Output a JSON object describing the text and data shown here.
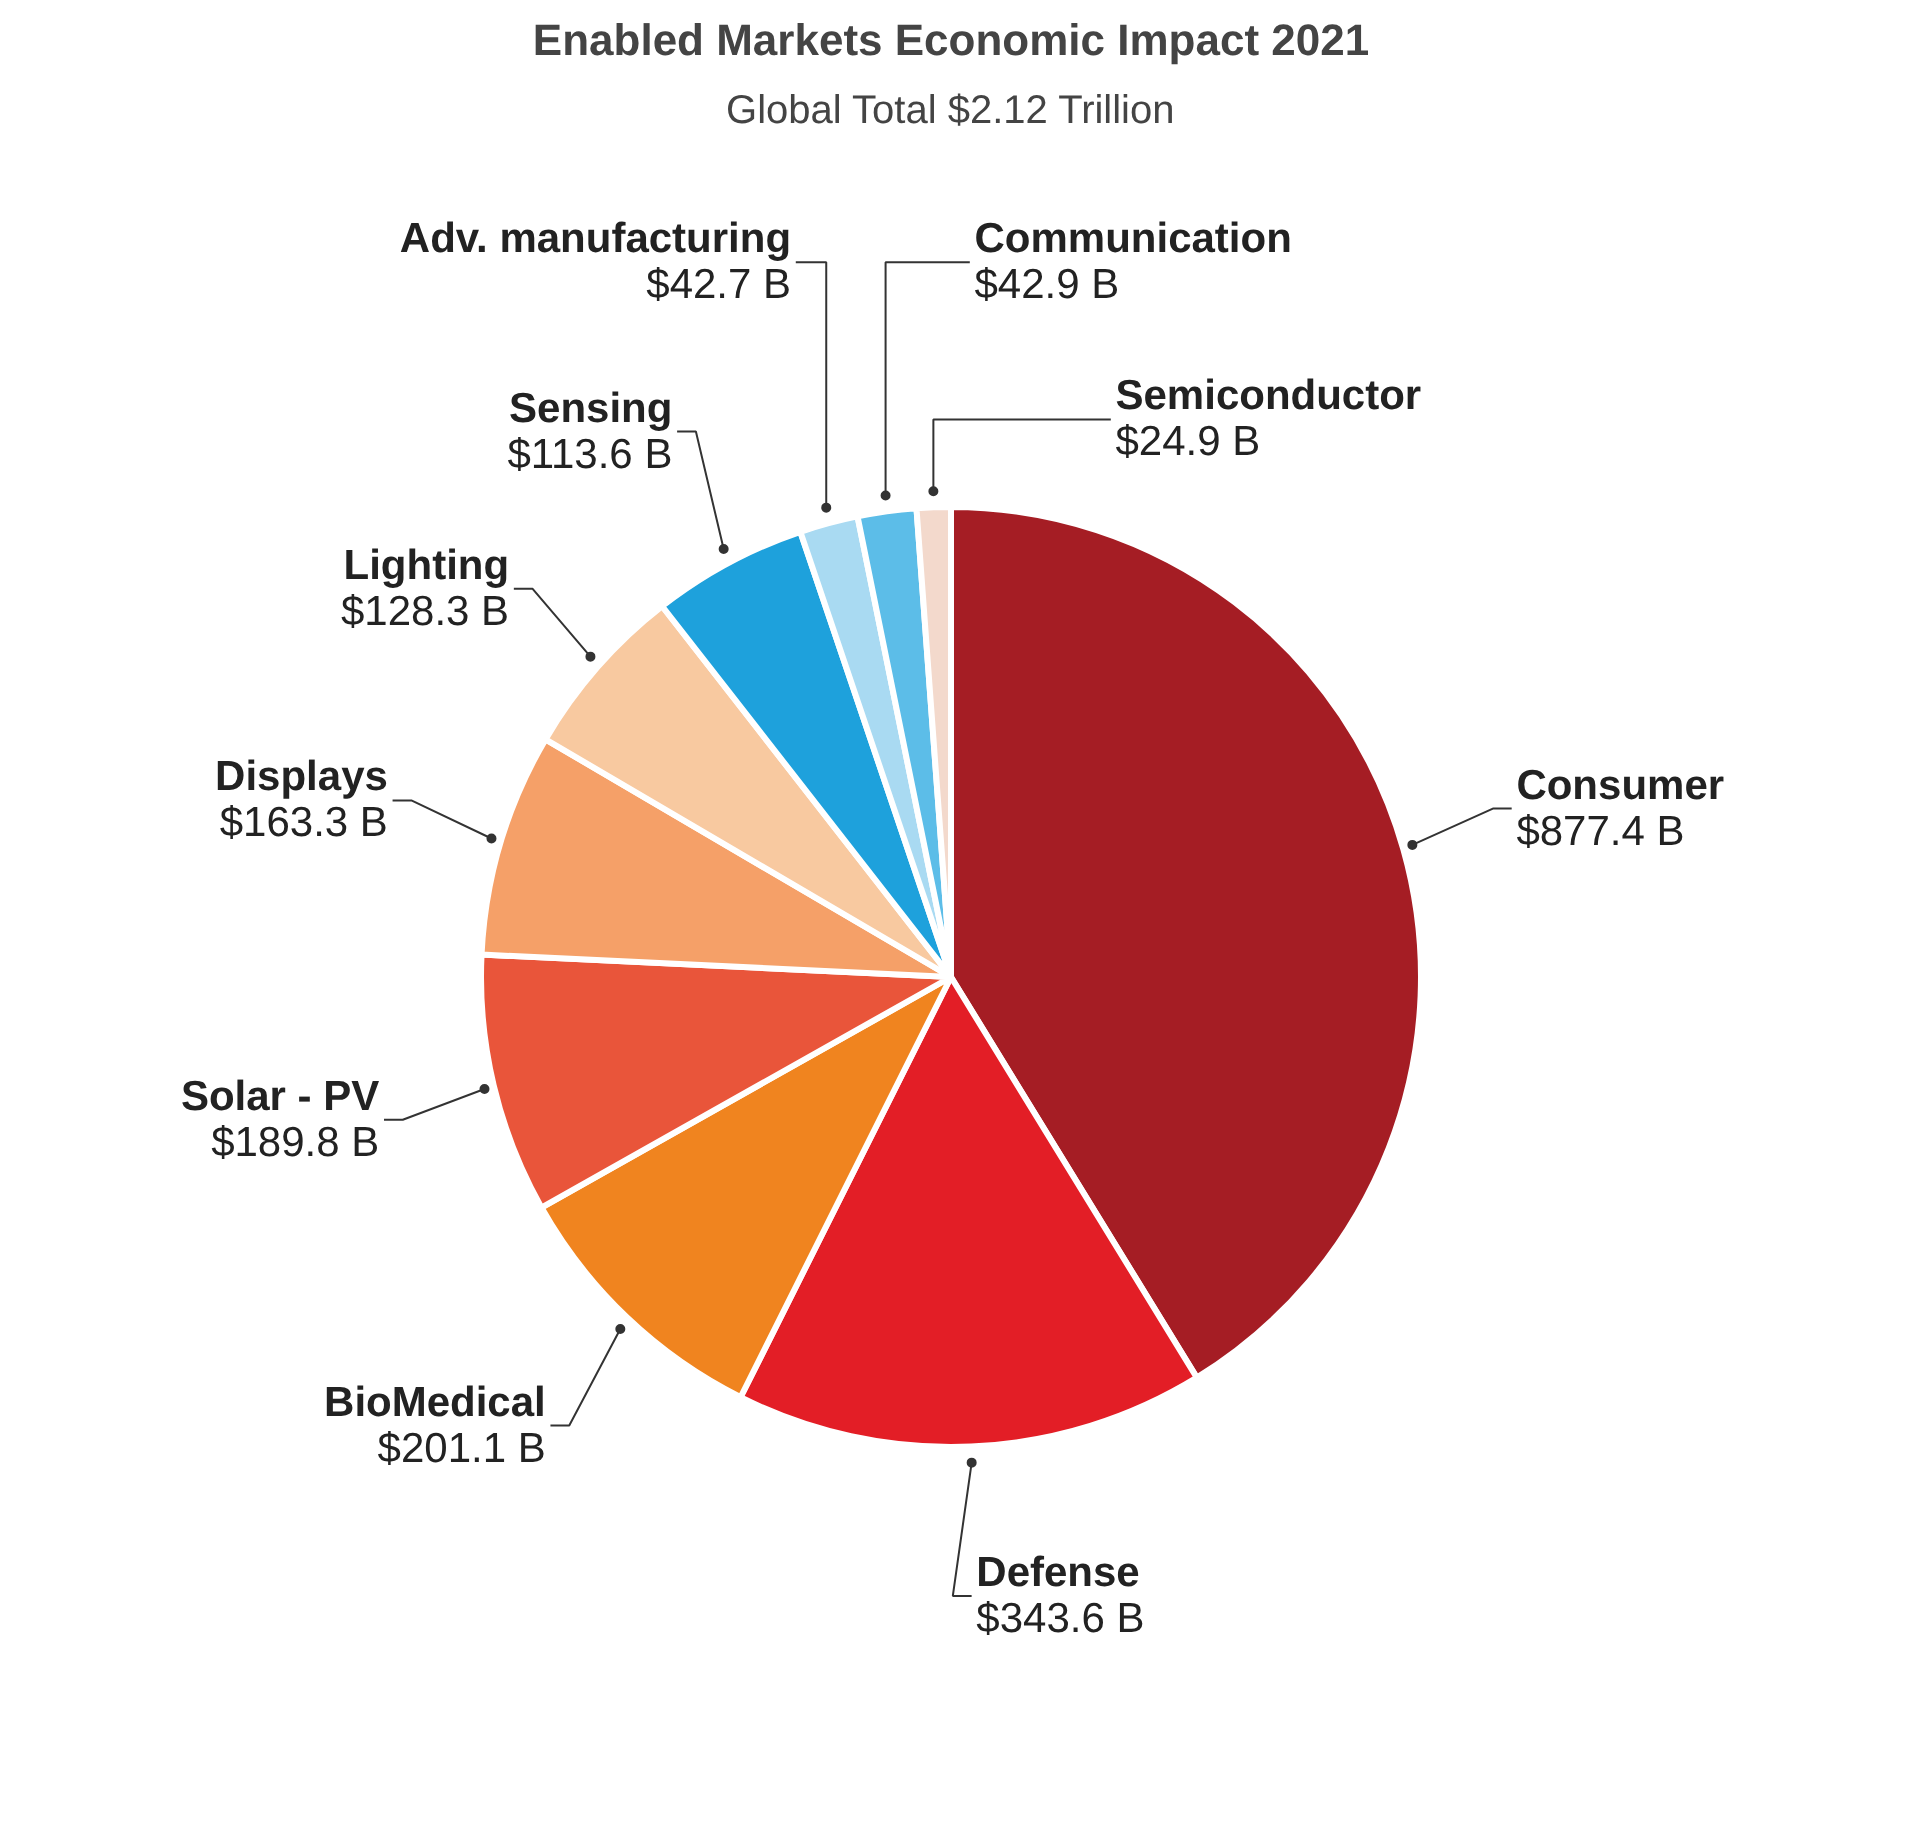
{
  "chart_data": {
    "type": "pie",
    "title": "Enabled Markets Economic Impact 2021",
    "subtitle": "Global Total $2.12 Trillion",
    "categories": [
      "Consumer",
      "Defense",
      "BioMedical",
      "Solar - PV",
      "Displays",
      "Lighting",
      "Sensing",
      "Adv. manufacturing",
      "Communication",
      "Semiconductor"
    ],
    "values": [
      877.4,
      343.6,
      201.1,
      189.8,
      163.3,
      128.3,
      113.6,
      42.7,
      42.9,
      24.9
    ],
    "colors": [
      "#a51d24",
      "#e31e26",
      "#f0841f",
      "#e9553a",
      "#f5a068",
      "#f8c9a0",
      "#1ea1dc",
      "#a9daf2",
      "#5cbde8",
      "#f3d9cc"
    ],
    "value_labels": [
      "$877.4 B",
      "$343.6 B",
      "$201.1 B",
      "$189.8 B",
      "$163.3 B",
      "$128.3 B",
      "$113.6 B",
      "$42.7 B",
      "$42.9 B",
      "$24.9 B"
    ]
  }
}
